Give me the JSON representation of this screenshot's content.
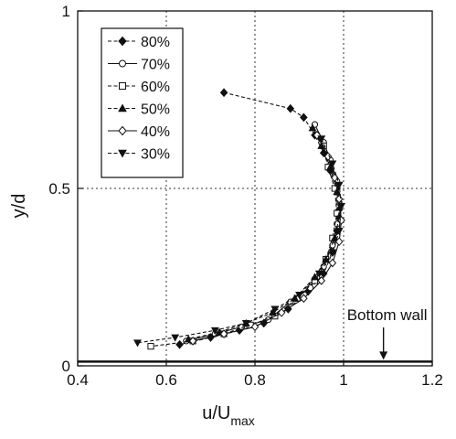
{
  "chart_data": {
    "type": "line",
    "title": "",
    "xlabel": "u/U",
    "xlabel_sub": "max",
    "ylabel": "y/d",
    "xlim": [
      0.4,
      1.2
    ],
    "ylim": [
      0,
      1
    ],
    "xticks": [
      "0.4",
      "0.6",
      "0.8",
      "1",
      "1.2"
    ],
    "yticks": [
      "0",
      "0.5",
      "1"
    ],
    "grid": "dotted",
    "legend_position": "top-left",
    "annotation": {
      "text": "Bottom wall",
      "x": 1.09,
      "y": 0.012
    },
    "bottom_wall_y": 0.012,
    "series": [
      {
        "name": "80%",
        "marker": "diamond-filled",
        "dash": "dashed",
        "x": [
          0.73,
          0.88,
          0.91,
          0.935,
          0.955,
          0.97,
          0.985,
          0.99,
          0.985,
          0.975,
          0.955,
          0.92,
          0.875,
          0.82,
          0.765,
          0.7,
          0.63
        ],
        "y": [
          0.77,
          0.725,
          0.7,
          0.65,
          0.6,
          0.55,
          0.5,
          0.44,
          0.38,
          0.32,
          0.26,
          0.21,
          0.16,
          0.12,
          0.1,
          0.08,
          0.06
        ]
      },
      {
        "name": "70%",
        "marker": "circle-open",
        "dash": "solid",
        "x": [
          0.935,
          0.955,
          0.97,
          0.985,
          0.99,
          0.985,
          0.975,
          0.955,
          0.925,
          0.88,
          0.83,
          0.77,
          0.71,
          0.645
        ],
        "y": [
          0.68,
          0.63,
          0.58,
          0.52,
          0.46,
          0.4,
          0.34,
          0.28,
          0.22,
          0.18,
          0.13,
          0.11,
          0.09,
          0.07
        ]
      },
      {
        "name": "60%",
        "marker": "square-open",
        "dash": "dashed",
        "x": [
          0.955,
          0.965,
          0.98,
          0.985,
          0.975,
          0.96,
          0.935,
          0.895,
          0.845,
          0.79,
          0.73,
          0.66,
          0.565
        ],
        "y": [
          0.62,
          0.56,
          0.5,
          0.43,
          0.36,
          0.3,
          0.24,
          0.19,
          0.14,
          0.115,
          0.09,
          0.07,
          0.055
        ]
      },
      {
        "name": "50%",
        "marker": "triangle-up-filled",
        "dash": "dashed",
        "x": [
          0.93,
          0.95,
          0.97,
          0.985,
          0.99,
          0.98,
          0.96,
          0.935,
          0.89,
          0.84,
          0.78,
          0.72,
          0.65
        ],
        "y": [
          0.67,
          0.62,
          0.56,
          0.49,
          0.42,
          0.36,
          0.3,
          0.25,
          0.19,
          0.15,
          0.12,
          0.095,
          0.075
        ]
      },
      {
        "name": "40%",
        "marker": "diamond-open",
        "dash": "solid",
        "x": [
          0.94,
          0.965,
          0.98,
          0.99,
          0.995,
          0.99,
          0.975,
          0.95,
          0.91,
          0.86,
          0.8,
          0.73,
          0.66
        ],
        "y": [
          0.65,
          0.59,
          0.53,
          0.47,
          0.41,
          0.35,
          0.29,
          0.24,
          0.19,
          0.15,
          0.11,
          0.09,
          0.07
        ]
      },
      {
        "name": "30%",
        "marker": "triangle-down-filled",
        "dash": "dashed",
        "x": [
          0.95,
          0.975,
          0.99,
          0.995,
          0.99,
          0.975,
          0.945,
          0.9,
          0.845,
          0.78,
          0.71,
          0.62,
          0.535
        ],
        "y": [
          0.64,
          0.57,
          0.51,
          0.45,
          0.38,
          0.32,
          0.26,
          0.2,
          0.16,
          0.12,
          0.1,
          0.08,
          0.065
        ]
      }
    ]
  }
}
